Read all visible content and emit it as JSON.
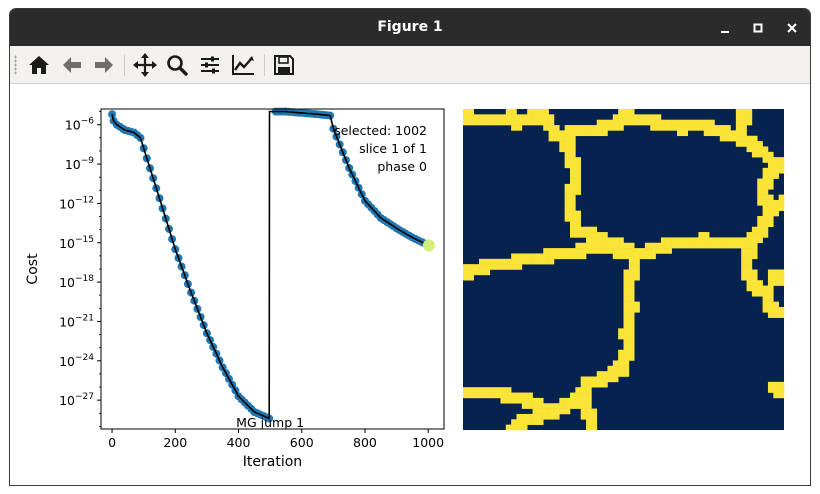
{
  "window": {
    "title": "Figure 1",
    "minimize_icon": "minimize-icon",
    "maximize_icon": "maximize-icon",
    "close_icon": "close-icon"
  },
  "toolbar": {
    "buttons": [
      {
        "icon": "home-icon"
      },
      {
        "icon": "back-arrow-icon"
      },
      {
        "icon": "forward-arrow-icon"
      },
      {
        "icon": "pan-move-icon"
      },
      {
        "icon": "zoom-magnifier-icon"
      },
      {
        "icon": "subplots-sliders-icon"
      },
      {
        "icon": "edit-axis-lines-icon"
      },
      {
        "icon": "save-floppy-icon"
      }
    ]
  },
  "chart_data": {
    "type": "scatter",
    "xlabel": "Iteration",
    "ylabel": "Cost",
    "yscale": "log",
    "xlim": [
      -35,
      1050
    ],
    "ylim_log10": [
      -29.2,
      -4.8
    ],
    "x_ticks": [
      0,
      200,
      400,
      600,
      800,
      1000
    ],
    "x_tick_labels": [
      "0",
      "200",
      "400",
      "600",
      "800",
      "1000"
    ],
    "y_ticks_log10": [
      -6,
      -9,
      -12,
      -15,
      -18,
      -21,
      -24,
      -27
    ],
    "y_tick_labels": [
      {
        "base": "10",
        "exp": "−6"
      },
      {
        "base": "10",
        "exp": "−9"
      },
      {
        "base": "10",
        "exp": "−12"
      },
      {
        "base": "10",
        "exp": "−15"
      },
      {
        "base": "10",
        "exp": "−18"
      },
      {
        "base": "10",
        "exp": "−21"
      },
      {
        "base": "10",
        "exp": "−24"
      },
      {
        "base": "10",
        "exp": "−27"
      }
    ],
    "grid": false,
    "marker_color": "#1f77b4",
    "line_color": "#000000",
    "highlight_color": "#d2ee7a",
    "highlight_point": {
      "x": 1002,
      "log10_y": -15.2
    },
    "curve_log10": [
      {
        "x": 0,
        "y": -5.2
      },
      {
        "x": 5,
        "y": -5.7
      },
      {
        "x": 15,
        "y": -6.0
      },
      {
        "x": 40,
        "y": -6.4
      },
      {
        "x": 70,
        "y": -6.6
      },
      {
        "x": 90,
        "y": -7.0
      },
      {
        "x": 100,
        "y": -7.8
      },
      {
        "x": 150,
        "y": -11.6
      },
      {
        "x": 200,
        "y": -15.5
      },
      {
        "x": 250,
        "y": -18.8
      },
      {
        "x": 300,
        "y": -21.9
      },
      {
        "x": 350,
        "y": -24.5
      },
      {
        "x": 400,
        "y": -26.7
      },
      {
        "x": 450,
        "y": -27.9
      },
      {
        "x": 497,
        "y": -28.4
      },
      {
        "x": 498,
        "y": -5.0
      },
      {
        "x": 550,
        "y": -5.0
      },
      {
        "x": 600,
        "y": -5.1
      },
      {
        "x": 650,
        "y": -5.2
      },
      {
        "x": 690,
        "y": -5.3
      },
      {
        "x": 700,
        "y": -6.3
      },
      {
        "x": 750,
        "y": -9.3
      },
      {
        "x": 800,
        "y": -11.8
      },
      {
        "x": 850,
        "y": -13.1
      },
      {
        "x": 900,
        "y": -13.9
      },
      {
        "x": 950,
        "y": -14.6
      },
      {
        "x": 1002,
        "y": -15.2
      }
    ],
    "annotations": {
      "selected": "selected: 1002",
      "slice": "slice 1 of 1",
      "phase": "phase 0",
      "jump": "MG jump 1"
    }
  },
  "image_panel": {
    "background_color": "#06224f",
    "boundary_color": "#fbe438"
  }
}
